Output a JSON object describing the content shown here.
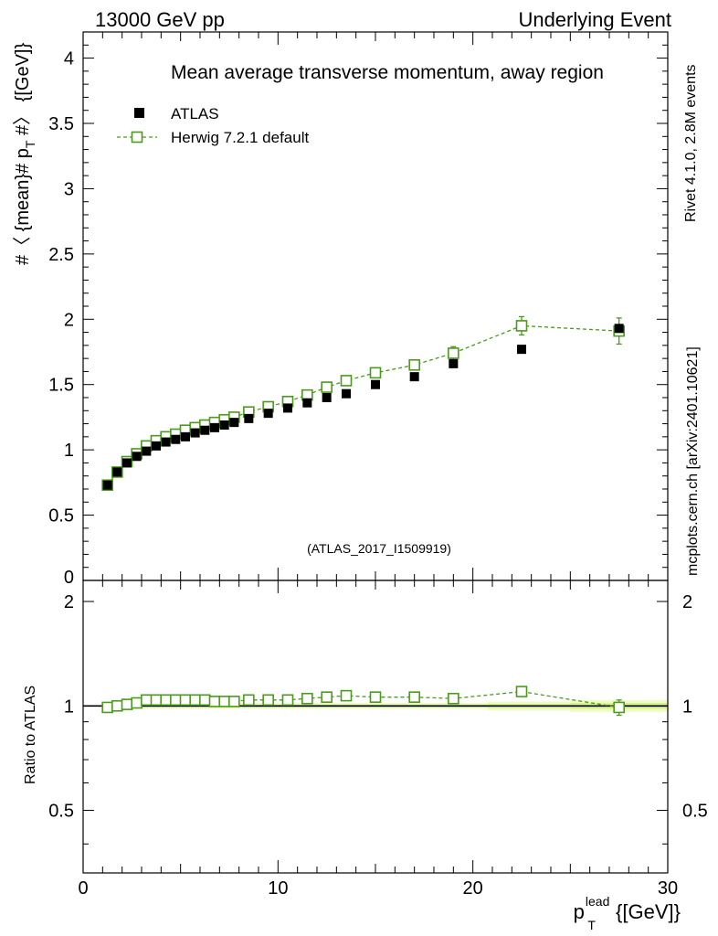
{
  "header": {
    "energy_label": "13000 GeV pp",
    "process_label": "Underlying Event"
  },
  "side_labels": {
    "rivet": "Rivet 4.1.0,  2.8M events",
    "mcplots": "mcplots.cern.ch [arXiv:2401.10621]"
  },
  "colors": {
    "atlas": "#000000",
    "herwig": "#4b9a1c",
    "band_inner": "#d8f58a",
    "band_outer": "#f0fcc8",
    "watermark": "#8c8c8c"
  },
  "chart_data": [
    {
      "type": "scatter",
      "title": "Mean average transverse momentum, away region",
      "watermark": "(ATLAS_2017_I1509919)",
      "xlabel_main": "p",
      "xlabel_sub": "T",
      "xlabel_sup": "lead",
      "xlabel_unit": " {[GeV]}",
      "ylabel_pre": "#〈 {mean}# p",
      "ylabel_sub": "T",
      "ylabel_post": " #〉 {[GeV]}",
      "xlim": [
        0,
        30
      ],
      "ylim": [
        0,
        4.2
      ],
      "x_ticks": [
        0,
        10,
        20,
        30
      ],
      "y_ticks": [
        0,
        0.5,
        1,
        1.5,
        2,
        2.5,
        3,
        3.5,
        4
      ],
      "y_tick_labels": [
        "0",
        "0.5",
        "1",
        "1.5",
        "2",
        "2.5",
        "3",
        "3.5",
        "4"
      ],
      "legend": [
        {
          "key": "atlas",
          "label": "ATLAS",
          "marker": "filled-square"
        },
        {
          "key": "herwig",
          "label": "Herwig 7.2.1 default",
          "marker": "open-square-dashed"
        }
      ],
      "x": [
        1.25,
        1.75,
        2.25,
        2.75,
        3.25,
        3.75,
        4.25,
        4.75,
        5.25,
        5.75,
        6.25,
        6.75,
        7.25,
        7.75,
        8.5,
        9.5,
        10.5,
        11.5,
        12.5,
        13.5,
        15,
        17,
        19,
        22.5,
        27.5
      ],
      "series": [
        {
          "name": "ATLAS",
          "values": [
            0.73,
            0.83,
            0.9,
            0.95,
            0.99,
            1.03,
            1.06,
            1.08,
            1.1,
            1.13,
            1.15,
            1.17,
            1.19,
            1.21,
            1.24,
            1.28,
            1.32,
            1.36,
            1.4,
            1.43,
            1.5,
            1.56,
            1.66,
            1.77,
            1.93
          ]
        },
        {
          "name": "Herwig 7.2.1 default",
          "values": [
            0.73,
            0.83,
            0.91,
            0.97,
            1.03,
            1.07,
            1.1,
            1.12,
            1.15,
            1.17,
            1.19,
            1.21,
            1.23,
            1.25,
            1.29,
            1.33,
            1.37,
            1.42,
            1.48,
            1.53,
            1.59,
            1.65,
            1.74,
            1.95,
            1.91
          ],
          "errors": [
            0.01,
            0.01,
            0.01,
            0.01,
            0.01,
            0.01,
            0.01,
            0.01,
            0.01,
            0.01,
            0.01,
            0.01,
            0.01,
            0.01,
            0.01,
            0.01,
            0.01,
            0.01,
            0.01,
            0.01,
            0.02,
            0.03,
            0.05,
            0.07,
            0.1
          ]
        }
      ]
    },
    {
      "type": "line",
      "ylabel": "Ratio to ATLAS",
      "xlim": [
        0,
        30
      ],
      "ylim": [
        0.33,
        2.3
      ],
      "y_ticks": [
        0.5,
        1,
        2
      ],
      "y_tick_labels": [
        "0.5",
        "1",
        "2"
      ],
      "x_ticks": [
        0,
        10,
        20,
        30
      ],
      "x_tick_labels": [
        "0",
        "10",
        "20",
        "30"
      ],
      "reference": 1,
      "band_upper": [
        1.02,
        1.02,
        1.02,
        1.02,
        1.02,
        1.02,
        1.02,
        1.02,
        1.02,
        1.02,
        1.02,
        1.02,
        1.02,
        1.02,
        1.02,
        1.02,
        1.02,
        1.02,
        1.02,
        1.02,
        1.02,
        1.02,
        1.02,
        1.03,
        1.04
      ],
      "band_lower": [
        0.98,
        0.98,
        0.98,
        0.98,
        0.98,
        0.98,
        0.98,
        0.98,
        0.98,
        0.98,
        0.98,
        0.98,
        0.98,
        0.98,
        0.98,
        0.98,
        0.98,
        0.98,
        0.98,
        0.98,
        0.98,
        0.98,
        0.98,
        0.97,
        0.96
      ],
      "ratio_values": [
        0.99,
        1.0,
        1.01,
        1.02,
        1.04,
        1.04,
        1.04,
        1.04,
        1.04,
        1.04,
        1.04,
        1.03,
        1.03,
        1.03,
        1.04,
        1.04,
        1.04,
        1.05,
        1.06,
        1.07,
        1.06,
        1.06,
        1.05,
        1.1,
        0.99
      ],
      "ratio_errors": [
        0.01,
        0.01,
        0.01,
        0.01,
        0.01,
        0.01,
        0.01,
        0.01,
        0.01,
        0.01,
        0.01,
        0.01,
        0.01,
        0.01,
        0.01,
        0.01,
        0.01,
        0.01,
        0.01,
        0.01,
        0.02,
        0.02,
        0.03,
        0.03,
        0.05
      ]
    }
  ]
}
